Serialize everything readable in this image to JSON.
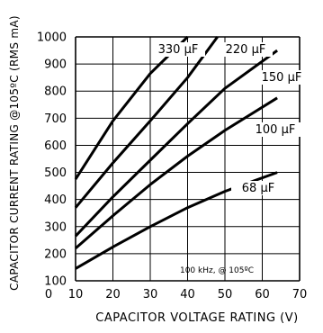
{
  "chart_data": {
    "type": "line",
    "xlabel": "CAPACITOR VOLTAGE RATING (V)",
    "ylabel": "CAPACITOR CURRENT RATING @105ºC (RMS mA)",
    "xlim": [
      0,
      70
    ],
    "ylim": [
      100,
      1000
    ],
    "x_ticks": [
      0,
      10,
      20,
      30,
      40,
      50,
      60,
      70
    ],
    "y_ticks": [
      100,
      200,
      300,
      400,
      500,
      600,
      700,
      800,
      900,
      1000
    ],
    "grid": true,
    "annotation": "100 kHz, @ 105ºC",
    "series": [
      {
        "name": "330 µF",
        "points": [
          [
            10,
            475
          ],
          [
            20,
            690
          ],
          [
            30,
            865
          ],
          [
            40,
            1000
          ]
        ]
      },
      {
        "name": "220 µF",
        "points": [
          [
            10,
            370
          ],
          [
            20,
            535
          ],
          [
            30,
            690
          ],
          [
            40,
            850
          ],
          [
            48,
            1000
          ]
        ]
      },
      {
        "name": "150 µF",
        "points": [
          [
            10,
            265
          ],
          [
            20,
            410
          ],
          [
            30,
            545
          ],
          [
            40,
            680
          ],
          [
            50,
            810
          ],
          [
            64,
            950
          ]
        ]
      },
      {
        "name": "100 µF",
        "points": [
          [
            10,
            220
          ],
          [
            20,
            340
          ],
          [
            30,
            455
          ],
          [
            40,
            560
          ],
          [
            50,
            655
          ],
          [
            64,
            775
          ]
        ]
      },
      {
        "name": "68 µF",
        "points": [
          [
            10,
            145
          ],
          [
            20,
            225
          ],
          [
            30,
            300
          ],
          [
            40,
            370
          ],
          [
            50,
            430
          ],
          [
            64,
            500
          ]
        ]
      }
    ]
  }
}
